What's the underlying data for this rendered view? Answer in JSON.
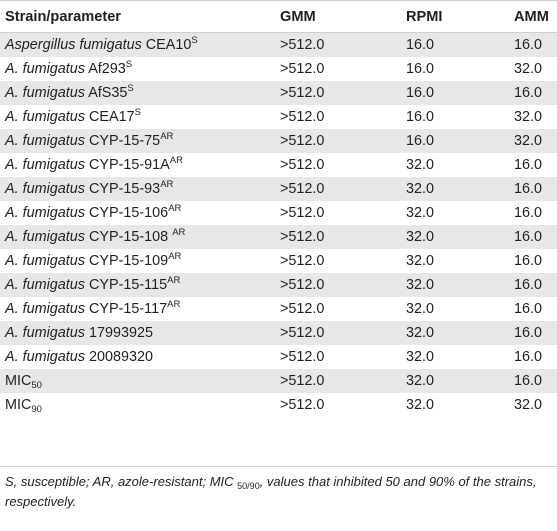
{
  "table": {
    "headers": [
      "Strain/parameter",
      "GMM",
      "RPMI",
      "AMM"
    ],
    "rows": [
      {
        "italic": "Aspergillus fumigatus",
        "rest": " CEA10",
        "sup": "S",
        "sub": "",
        "gmm": ">512.0",
        "rpmi": "16.0",
        "amm": "16.0"
      },
      {
        "italic": "A. fumigatus",
        "rest": " Af293",
        "sup": "S",
        "sub": "",
        "gmm": ">512.0",
        "rpmi": "16.0",
        "amm": "32.0"
      },
      {
        "italic": "A. fumigatus",
        "rest": " AfS35",
        "sup": "S",
        "sub": "",
        "gmm": ">512.0",
        "rpmi": "16.0",
        "amm": "16.0"
      },
      {
        "italic": "A. fumigatus",
        "rest": " CEA17",
        "sup": "S",
        "sub": "",
        "gmm": ">512.0",
        "rpmi": "16.0",
        "amm": "32.0"
      },
      {
        "italic": "A. fumigatus",
        "rest": " CYP-15-75",
        "sup": "AR",
        "sub": "",
        "gmm": ">512.0",
        "rpmi": "16.0",
        "amm": "32.0"
      },
      {
        "italic": "A. fumigatus",
        "rest": " CYP-15-91A",
        "sup": "AR",
        "sub": "",
        "gmm": ">512.0",
        "rpmi": "32.0",
        "amm": "16.0"
      },
      {
        "italic": "A. fumigatus",
        "rest": " CYP-15-93",
        "sup": "AR",
        "sub": "",
        "gmm": ">512.0",
        "rpmi": "32.0",
        "amm": "16.0"
      },
      {
        "italic": "A. fumigatus",
        "rest": " CYP-15-106",
        "sup": "AR",
        "sub": "",
        "gmm": ">512.0",
        "rpmi": "32.0",
        "amm": "16.0"
      },
      {
        "italic": "A. fumigatus",
        "rest": " CYP-15-108 ",
        "sup": "AR",
        "sub": "",
        "gmm": ">512.0",
        "rpmi": "32.0",
        "amm": "16.0"
      },
      {
        "italic": "A. fumigatus",
        "rest": " CYP-15-109",
        "sup": "AR",
        "sub": "",
        "gmm": ">512.0",
        "rpmi": "32.0",
        "amm": "16.0"
      },
      {
        "italic": "A. fumigatus",
        "rest": " CYP-15-115",
        "sup": "AR",
        "sub": "",
        "gmm": ">512.0",
        "rpmi": "32.0",
        "amm": "16.0"
      },
      {
        "italic": "A. fumigatus",
        "rest": " CYP-15-117",
        "sup": "AR",
        "sub": "",
        "gmm": ">512.0",
        "rpmi": "32.0",
        "amm": "16.0"
      },
      {
        "italic": "A. fumigatus",
        "rest": " 17993925",
        "sup": "",
        "sub": "",
        "gmm": ">512.0",
        "rpmi": "32.0",
        "amm": "16.0"
      },
      {
        "italic": "A. fumigatus",
        "rest": " 20089320",
        "sup": "",
        "sub": "",
        "gmm": ">512.0",
        "rpmi": "32.0",
        "amm": "16.0"
      },
      {
        "italic": "",
        "rest": "MIC",
        "sup": "",
        "sub": "50",
        "gmm": ">512.0",
        "rpmi": "32.0",
        "amm": "16.0"
      },
      {
        "italic": "",
        "rest": "MIC",
        "sup": "",
        "sub": "90",
        "gmm": ">512.0",
        "rpmi": "32.0",
        "amm": "32.0"
      }
    ]
  },
  "footnote": {
    "part1": "S, susceptible; AR, azole-resistant; MIC ",
    "sub": "50/90",
    "part2": ", values that inhibited 50 and 90% of the strains, respectively."
  }
}
